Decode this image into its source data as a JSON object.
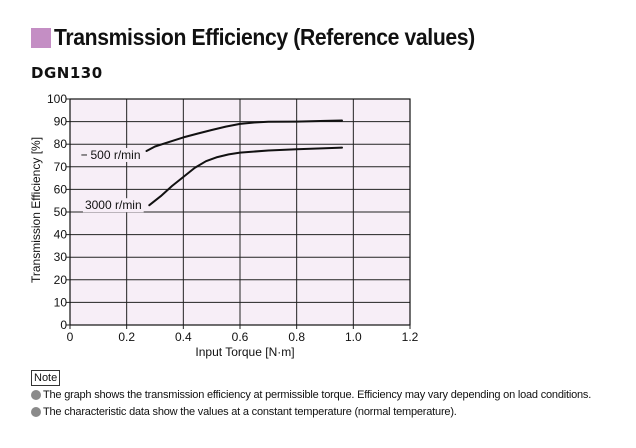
{
  "page": {
    "title": "Transmission Efficiency (Reference values)",
    "subtitle": "DGN130",
    "accent_color": "#c48ec4",
    "plot_background": "#f7eef7"
  },
  "chart_data": {
    "type": "line",
    "title": "",
    "xlabel": "Input Torque [N·m]",
    "ylabel": "Transmission Efficiency [%]",
    "xlim": [
      0,
      1.2
    ],
    "ylim": [
      0,
      100
    ],
    "x_ticks": [
      "0",
      "0.2",
      "0.4",
      "0.6",
      "0.8",
      "1.0",
      "1.2"
    ],
    "y_ticks": [
      "0",
      "10",
      "20",
      "30",
      "40",
      "50",
      "60",
      "70",
      "80",
      "90",
      "100"
    ],
    "grid": true,
    "series": [
      {
        "name": "500 r/min",
        "x": [
          0.27,
          0.3,
          0.35,
          0.4,
          0.45,
          0.5,
          0.55,
          0.6,
          0.65,
          0.7,
          0.8,
          0.9,
          0.96
        ],
        "y": [
          77,
          79,
          81,
          83,
          84.7,
          86.3,
          87.8,
          89,
          89.6,
          89.9,
          90,
          90.3,
          90.5
        ]
      },
      {
        "name": "3000 r/min",
        "x": [
          0.28,
          0.32,
          0.36,
          0.4,
          0.44,
          0.48,
          0.52,
          0.56,
          0.6,
          0.7,
          0.8,
          0.9,
          0.96
        ],
        "y": [
          53,
          57,
          61.5,
          65.5,
          69.5,
          72.5,
          74.3,
          75.5,
          76.3,
          77.2,
          77.8,
          78.2,
          78.5
        ]
      }
    ]
  },
  "notes": {
    "label": "Note",
    "items": [
      "The graph shows the transmission efficiency at permissible torque. Efficiency may vary depending on load conditions.",
      "The characteristic data show the values at a constant temperature (normal temperature)."
    ]
  }
}
